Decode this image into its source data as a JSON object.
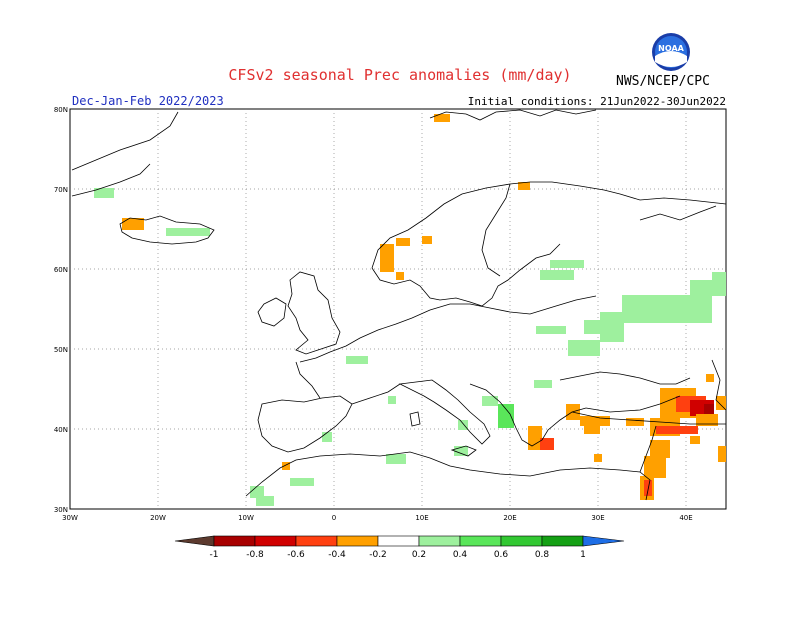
{
  "header": {
    "title": "CFSv2 seasonal Prec anomalies (mm/day)",
    "period": "Dec-Jan-Feb 2022/2023",
    "initial_conditions": "Initial conditions: 21Jun2022-30Jun2022",
    "agency": "NWS/NCEP/CPC",
    "logo_text": "NOAA"
  },
  "map": {
    "lat_labels": [
      "80N",
      "70N",
      "60N",
      "50N",
      "40N",
      "30N"
    ],
    "lon_labels": [
      "30W",
      "20W",
      "10W",
      "0",
      "10E",
      "20E",
      "30E",
      "40E"
    ],
    "grid": "dotted"
  },
  "colorbar": {
    "ticks": [
      "-1",
      "-0.8",
      "-0.6",
      "-0.4",
      "-0.2",
      "0.2",
      "0.4",
      "0.6",
      "0.8",
      "1"
    ],
    "colors": [
      "#5c3a2e",
      "#a80000",
      "#d00000",
      "#ff4010",
      "#ffa000",
      "#ffffff",
      "#9ef09e",
      "#5ae65a",
      "#32c832",
      "#14a014",
      "#1e6ee6"
    ]
  }
}
